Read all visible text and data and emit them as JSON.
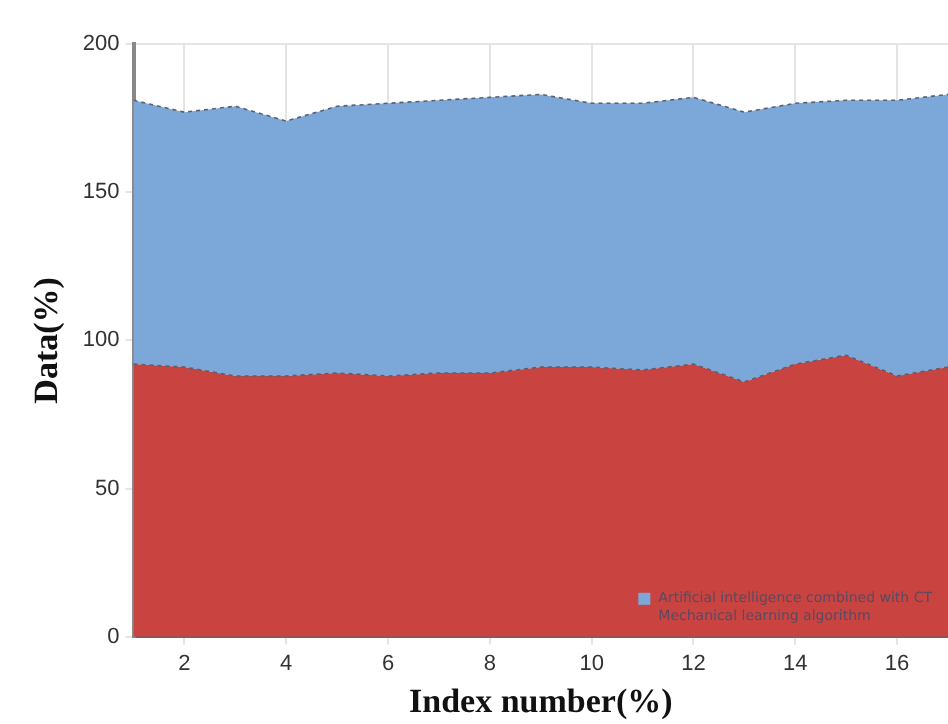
{
  "chart_data": {
    "type": "area",
    "xlabel": "Index number(%)",
    "ylabel": "Data(%)",
    "stacked": true,
    "x": [
      1,
      2,
      3,
      4,
      5,
      6,
      7,
      8,
      9,
      10,
      11,
      12,
      13,
      14,
      15,
      16,
      17
    ],
    "series": [
      {
        "name": "Mechanical learning algorithm",
        "color": "#c94440",
        "values": [
          92,
          91,
          88,
          88,
          89,
          88,
          89,
          89,
          91,
          91,
          90,
          92,
          86,
          92,
          95,
          88,
          91
        ]
      },
      {
        "name": "Artificial intelligence combined with CT",
        "color": "#7ba7d9",
        "values": [
          89,
          86,
          91,
          86,
          90,
          92,
          92,
          93,
          92,
          89,
          90,
          90,
          91,
          88,
          86,
          93,
          92
        ]
      }
    ],
    "xlim": [
      1,
      17
    ],
    "xticks": [
      2,
      4,
      6,
      8,
      10,
      12,
      14,
      16
    ],
    "ylim": [
      0,
      200
    ],
    "yticks": [
      0,
      50,
      100,
      150,
      200
    ],
    "grid": true,
    "legend": "bottom right"
  }
}
